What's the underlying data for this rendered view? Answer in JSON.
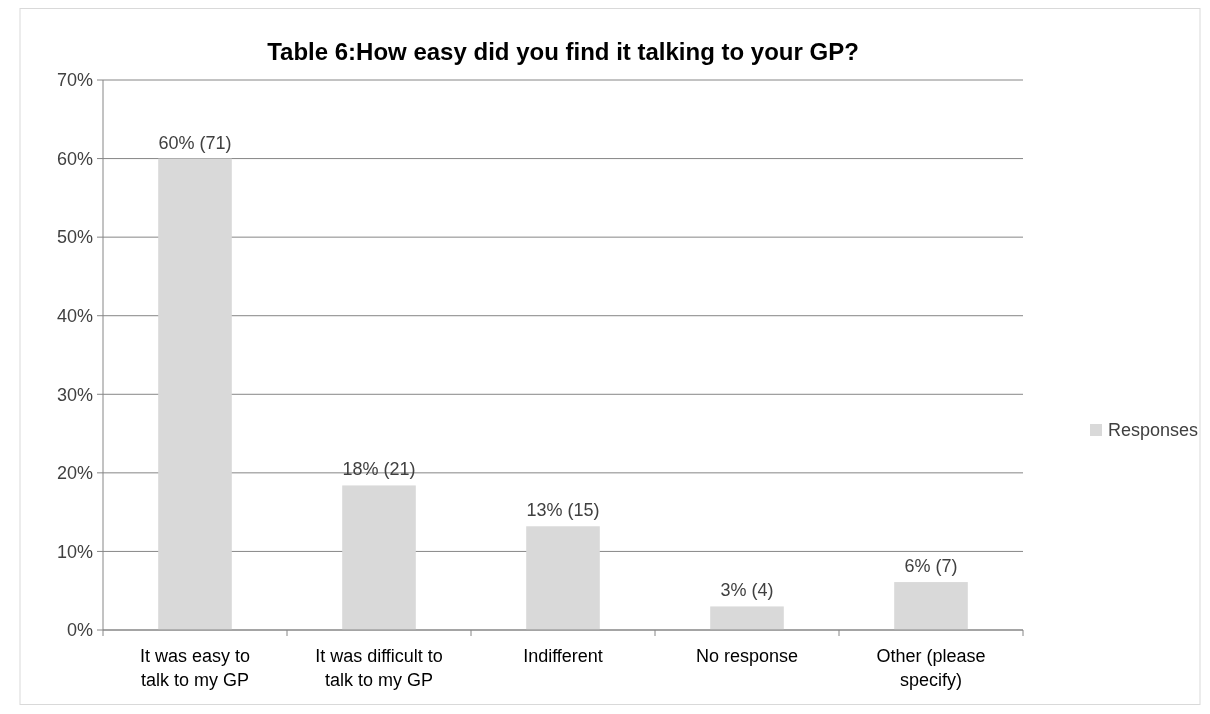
{
  "chart_data": {
    "type": "bar",
    "title": "Table 6:How easy did you find it talking to your GP?",
    "categories": [
      "It was easy to talk to my GP",
      "It was difficult to talk to my GP",
      "Indifferent",
      "No response",
      "Other (please specify)"
    ],
    "series": [
      {
        "name": "Responses",
        "color": "#d9d9d9",
        "values": [
          60,
          18.4,
          13.2,
          3,
          6.1
        ],
        "value_labels": [
          "60% (71)",
          "18% (21)",
          "13% (15)",
          "3% (4)",
          "6% (7)"
        ]
      }
    ],
    "ylim": [
      0,
      70
    ],
    "yticks": [
      {
        "value": 0,
        "label": "0%"
      },
      {
        "value": 10,
        "label": "10%"
      },
      {
        "value": 20,
        "label": "20%"
      },
      {
        "value": 30,
        "label": "30%"
      },
      {
        "value": 40,
        "label": "40%"
      },
      {
        "value": 50,
        "label": "50%"
      },
      {
        "value": 60,
        "label": "60%"
      },
      {
        "value": 70,
        "label": "70%"
      }
    ],
    "grid": "y",
    "legend": "right"
  }
}
